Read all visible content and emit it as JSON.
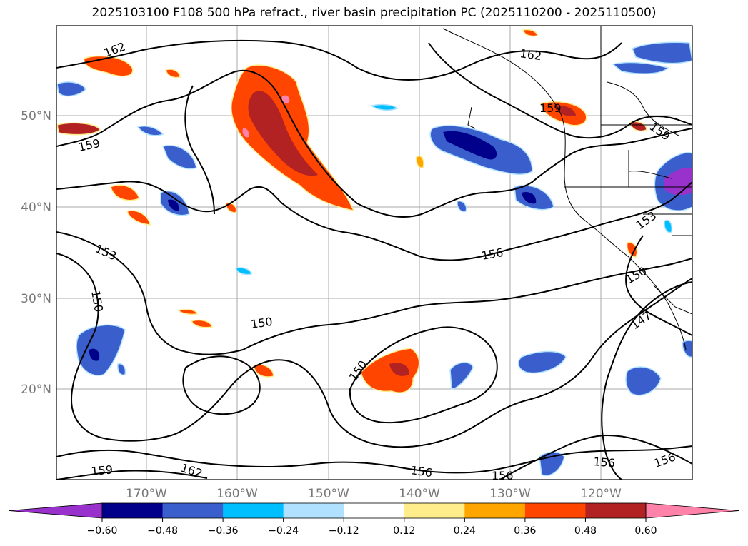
{
  "title": "2025103100 F108 500 hPa refract., river basin precipitation PC (2025110200 - 2025110500)",
  "lat_labels": [
    "50°N",
    "40°N",
    "30°N",
    "20°N"
  ],
  "lon_labels": [
    "170°W",
    "160°W",
    "150°W",
    "140°W",
    "130°W",
    "120°W"
  ],
  "contour_labels": [
    "162",
    "162",
    "159",
    "159",
    "159",
    "153",
    "153",
    "150",
    "150",
    "150",
    "150",
    "156",
    "156",
    "156",
    "156",
    "156",
    "147",
    "159",
    "162"
  ],
  "colorbar": {
    "ticks": [
      "−0.60",
      "−0.48",
      "−0.36",
      "−0.24",
      "−0.12",
      "0.12",
      "0.24",
      "0.36",
      "0.48",
      "0.60"
    ],
    "colors": [
      "#9932cc",
      "#00008b",
      "#3a5fcd",
      "#00bfff",
      "#b0e2ff",
      "#ffffff",
      "#ffec8b",
      "#ffa500",
      "#ff4500",
      "#b22222",
      "#ff82ab"
    ]
  }
}
